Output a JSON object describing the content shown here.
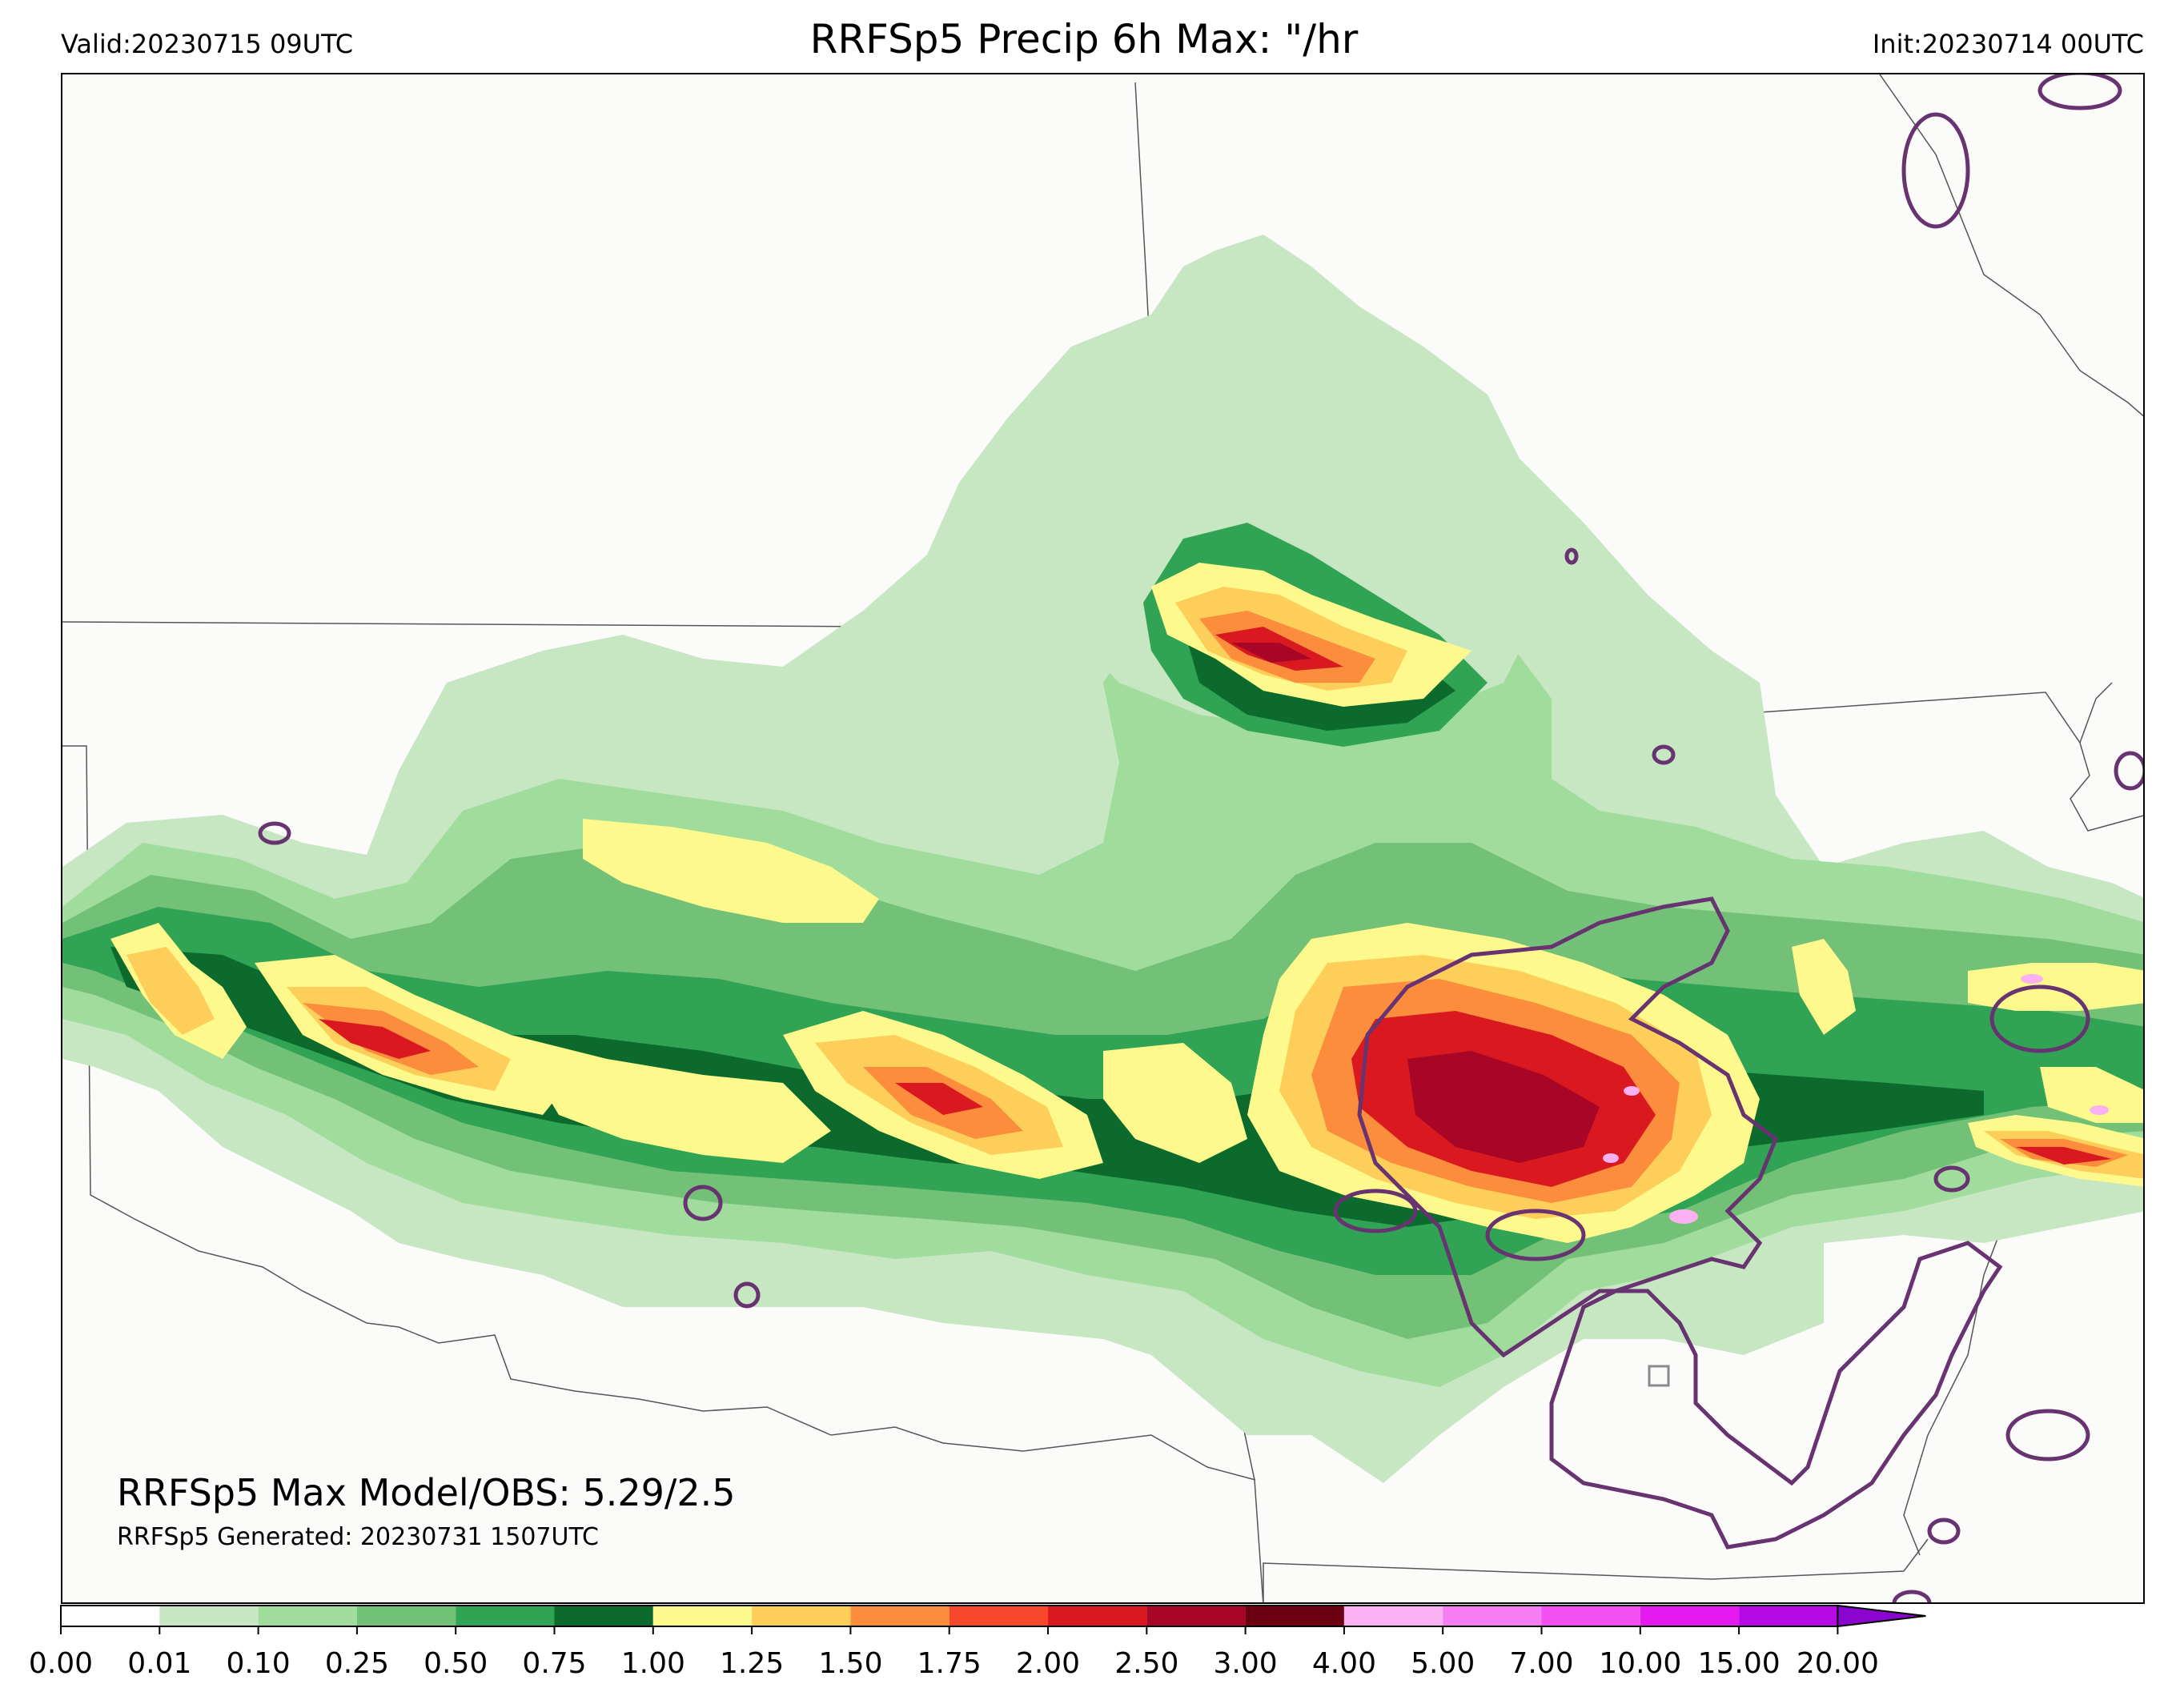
{
  "header": {
    "valid": "Valid:20230715 09UTC",
    "title": "RRFSp5 Precip 6h Max: \"/hr",
    "init": "Init:20230714 00UTC"
  },
  "stats": {
    "max_line": "RRFSp5 Max Model/OBS: 5.29/2.5",
    "generated": "RRFSp5 Generated: 20230731 1507UTC"
  },
  "colorbar": {
    "ticks": [
      "0.00",
      "0.01",
      "0.10",
      "0.25",
      "0.50",
      "0.75",
      "1.00",
      "1.25",
      "1.50",
      "1.75",
      "2.00",
      "2.50",
      "3.00",
      "4.00",
      "5.00",
      "7.00",
      "10.00",
      "15.00",
      "20.00"
    ],
    "colors": [
      "#ffffff",
      "#c7e6c2",
      "#a0dc9b",
      "#73c177",
      "#31a354",
      "#0b6a2c",
      "#fef98d",
      "#fdce5a",
      "#fb8d3d",
      "#f7482b",
      "#d9191f",
      "#a80527",
      "#6d0010",
      "#f9b1f3",
      "#f67ef3",
      "#f34ff1",
      "#e51af0",
      "#b708e6",
      "#8a06cf"
    ],
    "extend": "max"
  },
  "map": {
    "region": "Central / Northern Plains, USA",
    "background": "#fbfbfa",
    "obs_contour_color": "#673370",
    "state_border_color": "#444444"
  }
}
